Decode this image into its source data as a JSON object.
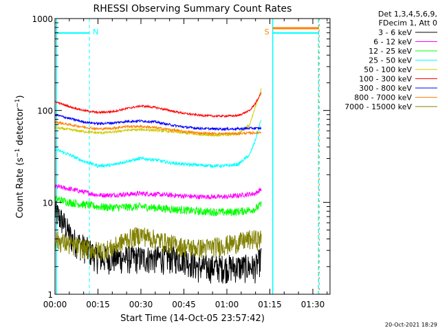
{
  "chart_data": {
    "type": "line",
    "title": "RHESSI Observing Summary Count Rates",
    "xlabel": "Start Time (14-Oct-05 23:57:42)",
    "ylabel": "Count Rate (s⁻¹ detector⁻¹)",
    "ylabel_parts": [
      "Count Rate (s",
      "−1",
      " detector",
      "−1",
      ")"
    ],
    "y_scale": "log",
    "ylim": [
      1,
      1000
    ],
    "xlim_minutes": [
      0,
      96
    ],
    "x_ticks": [
      {
        "minutes": 0,
        "label": "00:00"
      },
      {
        "minutes": 15,
        "label": "00:15"
      },
      {
        "minutes": 30,
        "label": "00:30"
      },
      {
        "minutes": 45,
        "label": "00:45"
      },
      {
        "minutes": 60,
        "label": "01:00"
      },
      {
        "minutes": 75,
        "label": "01:15"
      },
      {
        "minutes": 90,
        "label": "01:30"
      }
    ],
    "y_ticks": [
      {
        "value": 1,
        "label": "1"
      },
      {
        "value": 10,
        "label": "10"
      },
      {
        "value": 100,
        "label": "100"
      },
      {
        "value": 1000,
        "label": "1000"
      }
    ],
    "legend_header": [
      "Det 1,3,4,5,6,9,",
      "FDecim 1, Att 0"
    ],
    "legend_position": "right",
    "series": [
      {
        "name": "3 - 6 keV",
        "color": "#000000",
        "minutes": [
          0,
          3,
          6,
          9,
          12,
          15,
          20,
          30,
          40,
          45,
          50,
          55,
          60,
          65,
          70,
          72
        ],
        "values": [
          8,
          6,
          4,
          3.5,
          3,
          2.5,
          2.5,
          2.5,
          2.5,
          2.5,
          2,
          2,
          2,
          2,
          2,
          2.5
        ]
      },
      {
        "name": "6 - 12 keV",
        "color": "#ff00ff",
        "minutes": [
          0,
          5,
          10,
          15,
          20,
          30,
          40,
          50,
          60,
          65,
          70,
          72
        ],
        "values": [
          15,
          14,
          13,
          12,
          12,
          12.5,
          12,
          11.5,
          11.5,
          12,
          12.5,
          14
        ]
      },
      {
        "name": "12 - 25 keV",
        "color": "#00ff00",
        "minutes": [
          0,
          5,
          10,
          15,
          20,
          30,
          40,
          50,
          60,
          65,
          70,
          72
        ],
        "values": [
          11,
          10,
          9.5,
          9,
          8.8,
          9,
          8.5,
          8,
          7.8,
          8,
          8.5,
          9.5
        ]
      },
      {
        "name": "25 - 50 keV",
        "color": "#00ffff",
        "minutes": [
          0,
          5,
          10,
          15,
          20,
          25,
          30,
          35,
          40,
          45,
          50,
          55,
          60,
          64,
          68,
          70,
          72
        ],
        "values": [
          38,
          33,
          28,
          25,
          25.5,
          28,
          30,
          29,
          27,
          26,
          25.5,
          25,
          25,
          26,
          33,
          48,
          80
        ]
      },
      {
        "name": "50 - 100 keV",
        "color": "#cccc00",
        "minutes": [
          0,
          5,
          10,
          15,
          20,
          25,
          30,
          35,
          40,
          45,
          50,
          55,
          60,
          64,
          68,
          70,
          72
        ],
        "values": [
          65,
          62,
          59,
          57,
          58,
          61,
          62,
          61,
          59,
          57,
          55,
          54,
          54,
          56,
          70,
          110,
          170
        ]
      },
      {
        "name": "100 - 300 keV",
        "color": "#ff0000",
        "minutes": [
          0,
          5,
          10,
          15,
          20,
          25,
          30,
          35,
          40,
          45,
          50,
          55,
          60,
          64,
          68,
          70,
          72
        ],
        "values": [
          125,
          110,
          100,
          95,
          97,
          105,
          112,
          108,
          100,
          93,
          89,
          87,
          87,
          88,
          100,
          120,
          155
        ]
      },
      {
        "name": "300 - 800 keV",
        "color": "#0000ff",
        "minutes": [
          0,
          5,
          10,
          15,
          20,
          25,
          30,
          35,
          40,
          45,
          50,
          55,
          60,
          64,
          68,
          70,
          72
        ],
        "values": [
          90,
          82,
          75,
          72,
          73,
          76,
          77,
          75,
          70,
          66,
          64,
          63,
          63,
          63,
          64,
          64,
          64
        ]
      },
      {
        "name": "800 - 7000 keV",
        "color": "#ff8000",
        "minutes": [
          0,
          5,
          10,
          15,
          20,
          25,
          30,
          35,
          40,
          45,
          50,
          55,
          60,
          64,
          68,
          70,
          72
        ],
        "values": [
          75,
          70,
          66,
          63,
          64,
          67,
          67,
          65,
          62,
          59,
          57,
          56,
          56,
          56,
          57,
          57,
          58
        ]
      },
      {
        "name": "7000 - 15000 keV",
        "color": "#808000",
        "minutes": [
          0,
          5,
          10,
          15,
          20,
          25,
          30,
          35,
          40,
          45,
          50,
          55,
          60,
          64,
          68,
          70,
          72
        ],
        "values": [
          4,
          3.5,
          3.2,
          3,
          3.2,
          4,
          4.5,
          4,
          3.6,
          3.3,
          3.2,
          3.3,
          3.5,
          3.7,
          4,
          4,
          4
        ]
      }
    ],
    "annotations": [
      {
        "text": "N",
        "minutes": 12,
        "color": "#00ffff"
      },
      {
        "text": "S",
        "minutes": 76,
        "color": "#ff8000"
      }
    ],
    "footer_date": "20-Oct-2021 18:29"
  }
}
